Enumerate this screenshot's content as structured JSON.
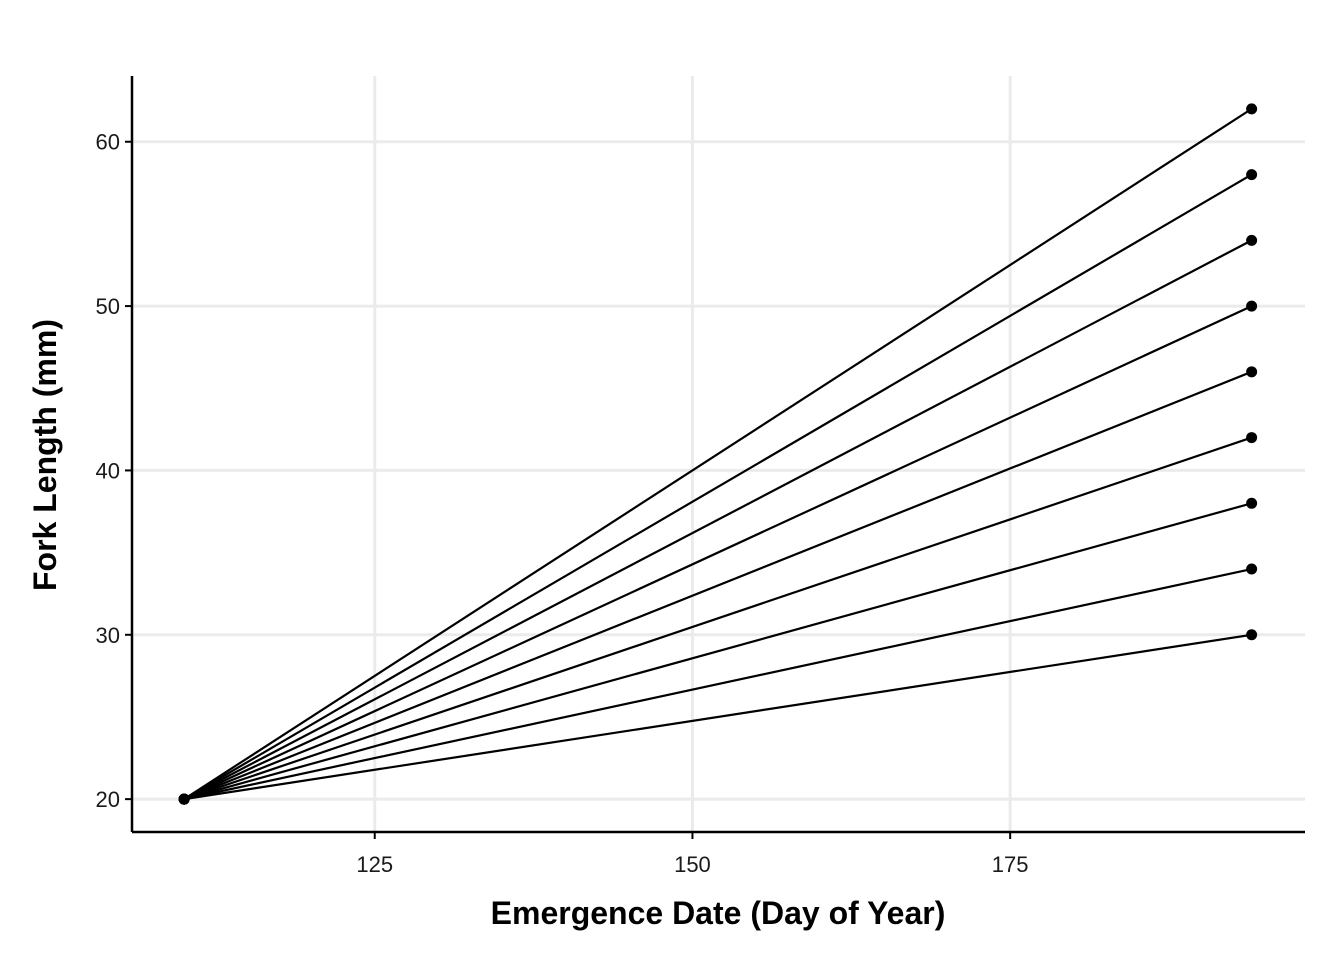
{
  "chart_data": {
    "type": "line",
    "title": "",
    "xlabel": "Emergence Date (Day of Year)",
    "ylabel": "Fork Length (mm)",
    "xlim": [
      105.9,
      198.2
    ],
    "ylim": [
      18,
      64
    ],
    "x_ticks": [
      125,
      150,
      175
    ],
    "y_ticks": [
      20,
      30,
      40,
      50,
      60
    ],
    "grid": true,
    "legend": "none",
    "colors": {
      "line": "#000000",
      "grid": "#ebebeb",
      "axis": "#000000"
    },
    "series": [
      {
        "x": [
          110,
          194
        ],
        "y": [
          20,
          30
        ]
      },
      {
        "x": [
          110,
          194
        ],
        "y": [
          20,
          34
        ]
      },
      {
        "x": [
          110,
          194
        ],
        "y": [
          20,
          38
        ]
      },
      {
        "x": [
          110,
          194
        ],
        "y": [
          20,
          42
        ]
      },
      {
        "x": [
          110,
          194
        ],
        "y": [
          20,
          46
        ]
      },
      {
        "x": [
          110,
          194
        ],
        "y": [
          20,
          50
        ]
      },
      {
        "x": [
          110,
          194
        ],
        "y": [
          20,
          54
        ]
      },
      {
        "x": [
          110,
          194
        ],
        "y": [
          20,
          58
        ]
      },
      {
        "x": [
          110,
          194
        ],
        "y": [
          20,
          62
        ]
      }
    ]
  }
}
